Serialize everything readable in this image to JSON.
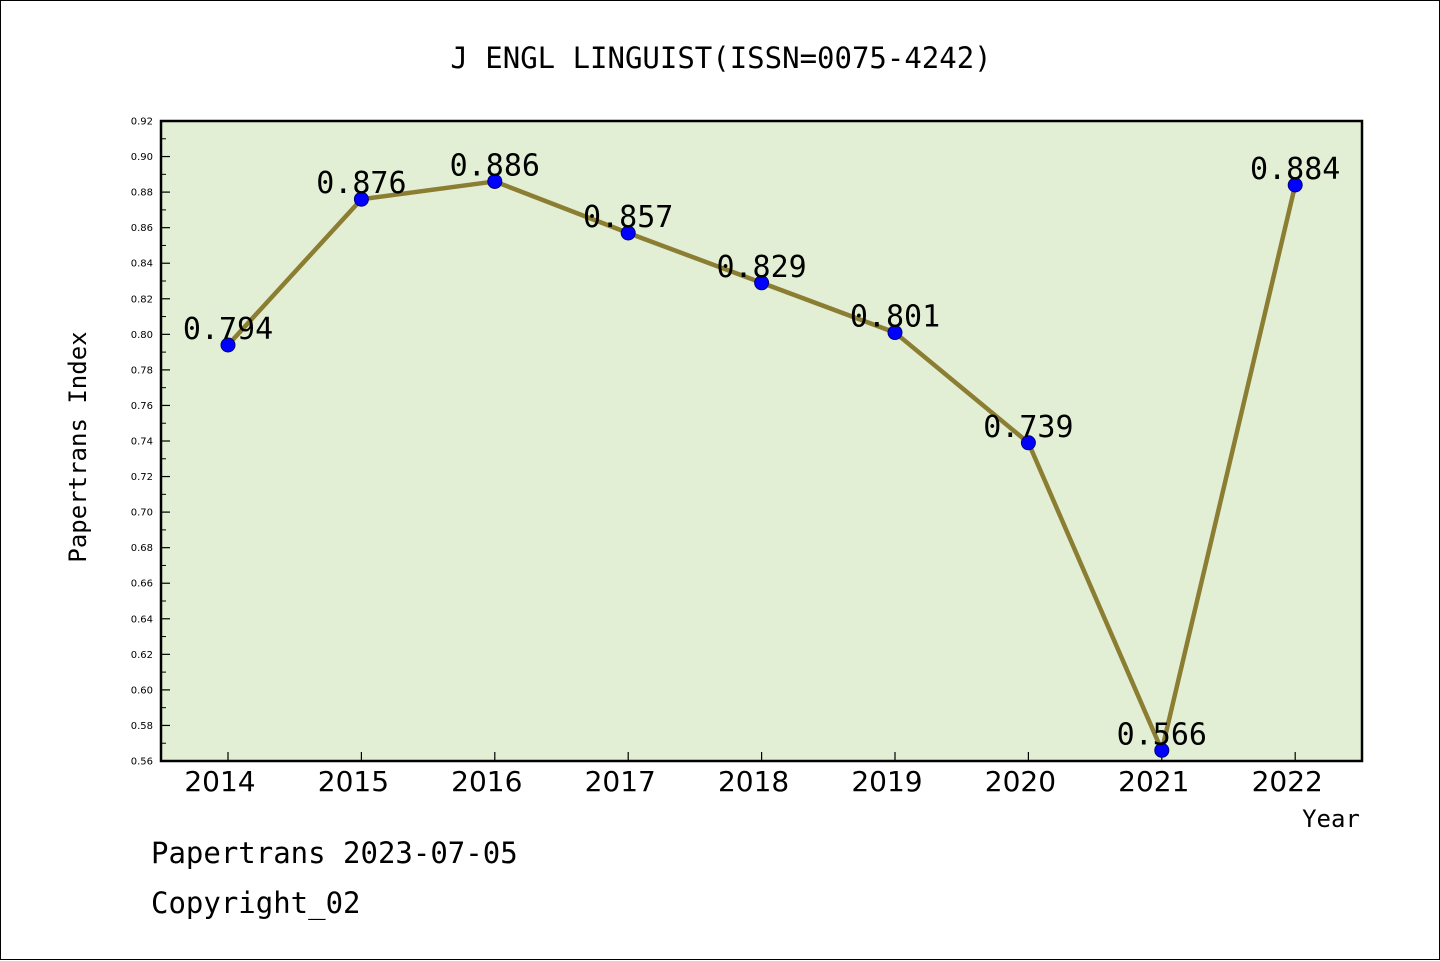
{
  "chart_data": {
    "type": "line",
    "title": "J ENGL LINGUIST(ISSN=0075-4242)",
    "xlabel": "Year",
    "ylabel": "Papertrans Index",
    "categories": [
      "2014",
      "2015",
      "2016",
      "2017",
      "2018",
      "2019",
      "2020",
      "2021",
      "2022"
    ],
    "values": [
      0.794,
      0.876,
      0.886,
      0.857,
      0.829,
      0.801,
      0.739,
      0.566,
      0.884
    ],
    "data_labels": [
      "0.794",
      "0.876",
      "0.886",
      "0.857",
      "0.829",
      "0.801",
      "0.739",
      "0.566",
      "0.884"
    ],
    "ylim": [
      0.56,
      0.92
    ],
    "yticks": [
      "0.56",
      "0.58",
      "0.60",
      "0.62",
      "0.64",
      "0.66",
      "0.68",
      "0.70",
      "0.72",
      "0.74",
      "0.76",
      "0.78",
      "0.80",
      "0.82",
      "0.84",
      "0.86",
      "0.88",
      "0.90",
      "0.92"
    ],
    "grid": false,
    "colors": {
      "plot_background": "#e2efd4",
      "line": "#8b7d32",
      "marker": "#0000ff"
    }
  },
  "footer": {
    "line1": "Papertrans 2023-07-05",
    "line2": "Copyright_02"
  }
}
